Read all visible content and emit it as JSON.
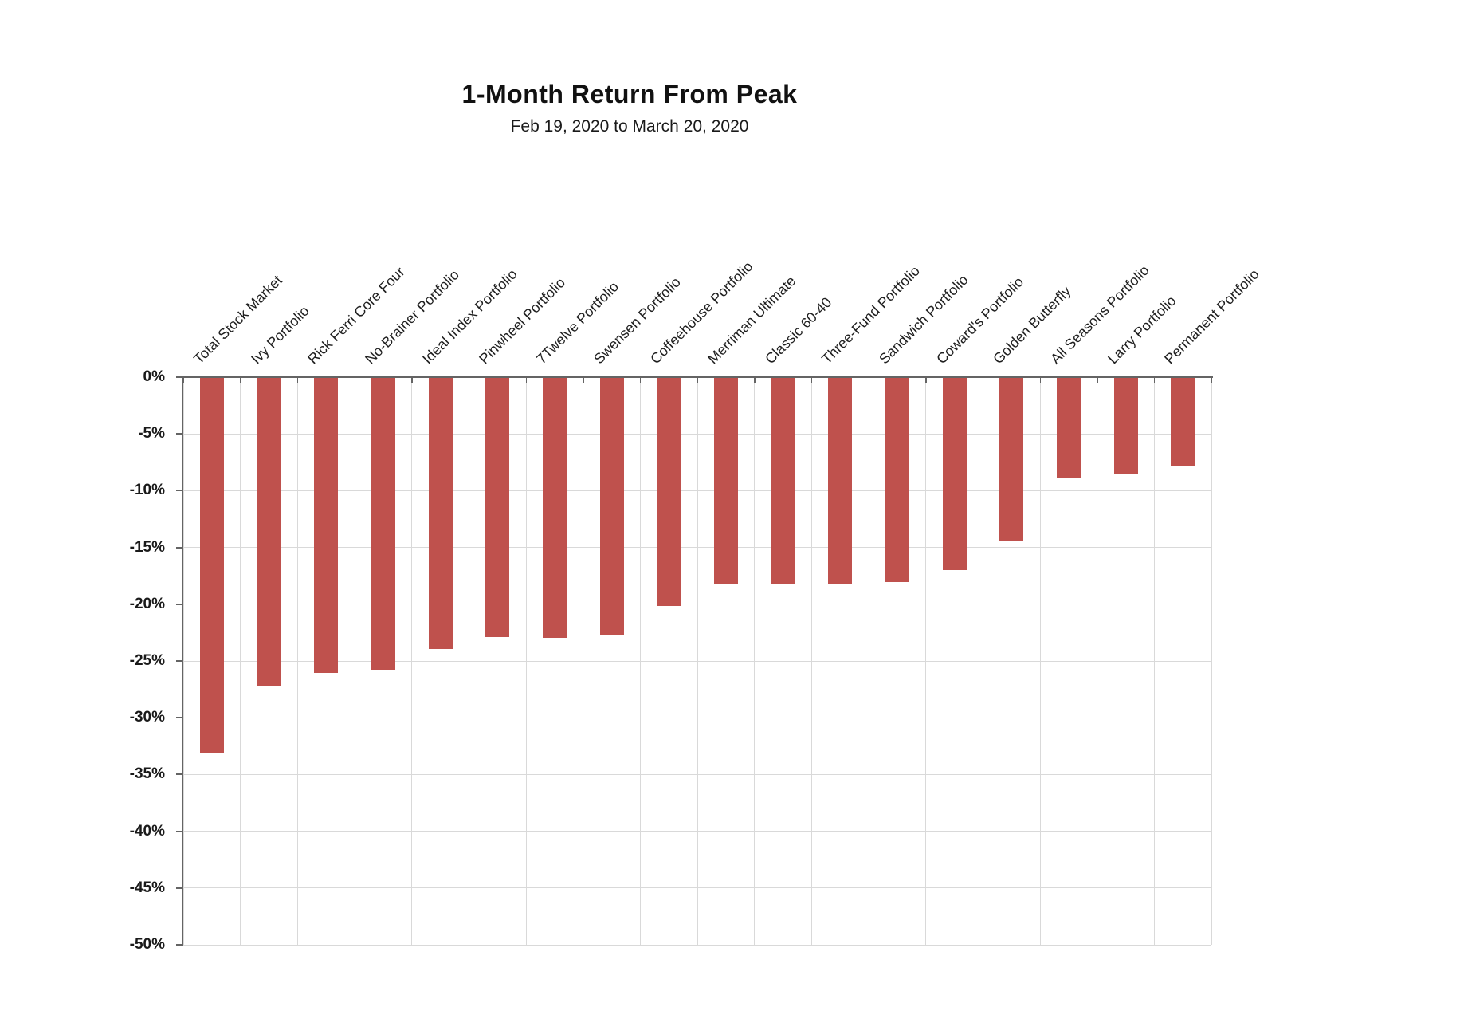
{
  "chart_data": {
    "type": "bar",
    "title": "1-Month Return From Peak",
    "subtitle": "Feb 19, 2020 to March 20, 2020",
    "categories": [
      "Total Stock Market",
      "Ivy Portfolio",
      "Rick Ferri Core Four",
      "No-Brainer Portfolio",
      "Ideal Index Portfolio",
      "Pinwheel Portfolio",
      "7Twelve Portfolio",
      "Swensen Portfolio",
      "Coffeehouse Portfolio",
      "Merriman Ultimate",
      "Classic 60-40",
      "Three-Fund Portfolio",
      "Sandwich Portfolio",
      "Coward's Portfolio",
      "Golden Butterfly",
      "All Seasons Portfolio",
      "Larry Portfolio",
      "Permanent Portfolio"
    ],
    "values": [
      -33.0,
      -27.1,
      -26.0,
      -25.7,
      -23.9,
      -22.8,
      -22.9,
      -22.7,
      -20.1,
      -18.1,
      -18.1,
      -18.1,
      -18.0,
      -16.9,
      -14.4,
      -8.8,
      -8.4,
      -7.7
    ],
    "unit": "%",
    "y_tick_labels": [
      "0%",
      "-5%",
      "-10%",
      "-15%",
      "-20%",
      "-25%",
      "-30%",
      "-35%",
      "-40%",
      "-45%",
      "-50%"
    ],
    "ylim": [
      -50,
      0
    ],
    "grid": true,
    "legend": "none",
    "bar_color": "#bf514d",
    "gridline_color": "#d9d9d9",
    "axis_color": "#646464",
    "text_color": "#1a1a1a"
  }
}
